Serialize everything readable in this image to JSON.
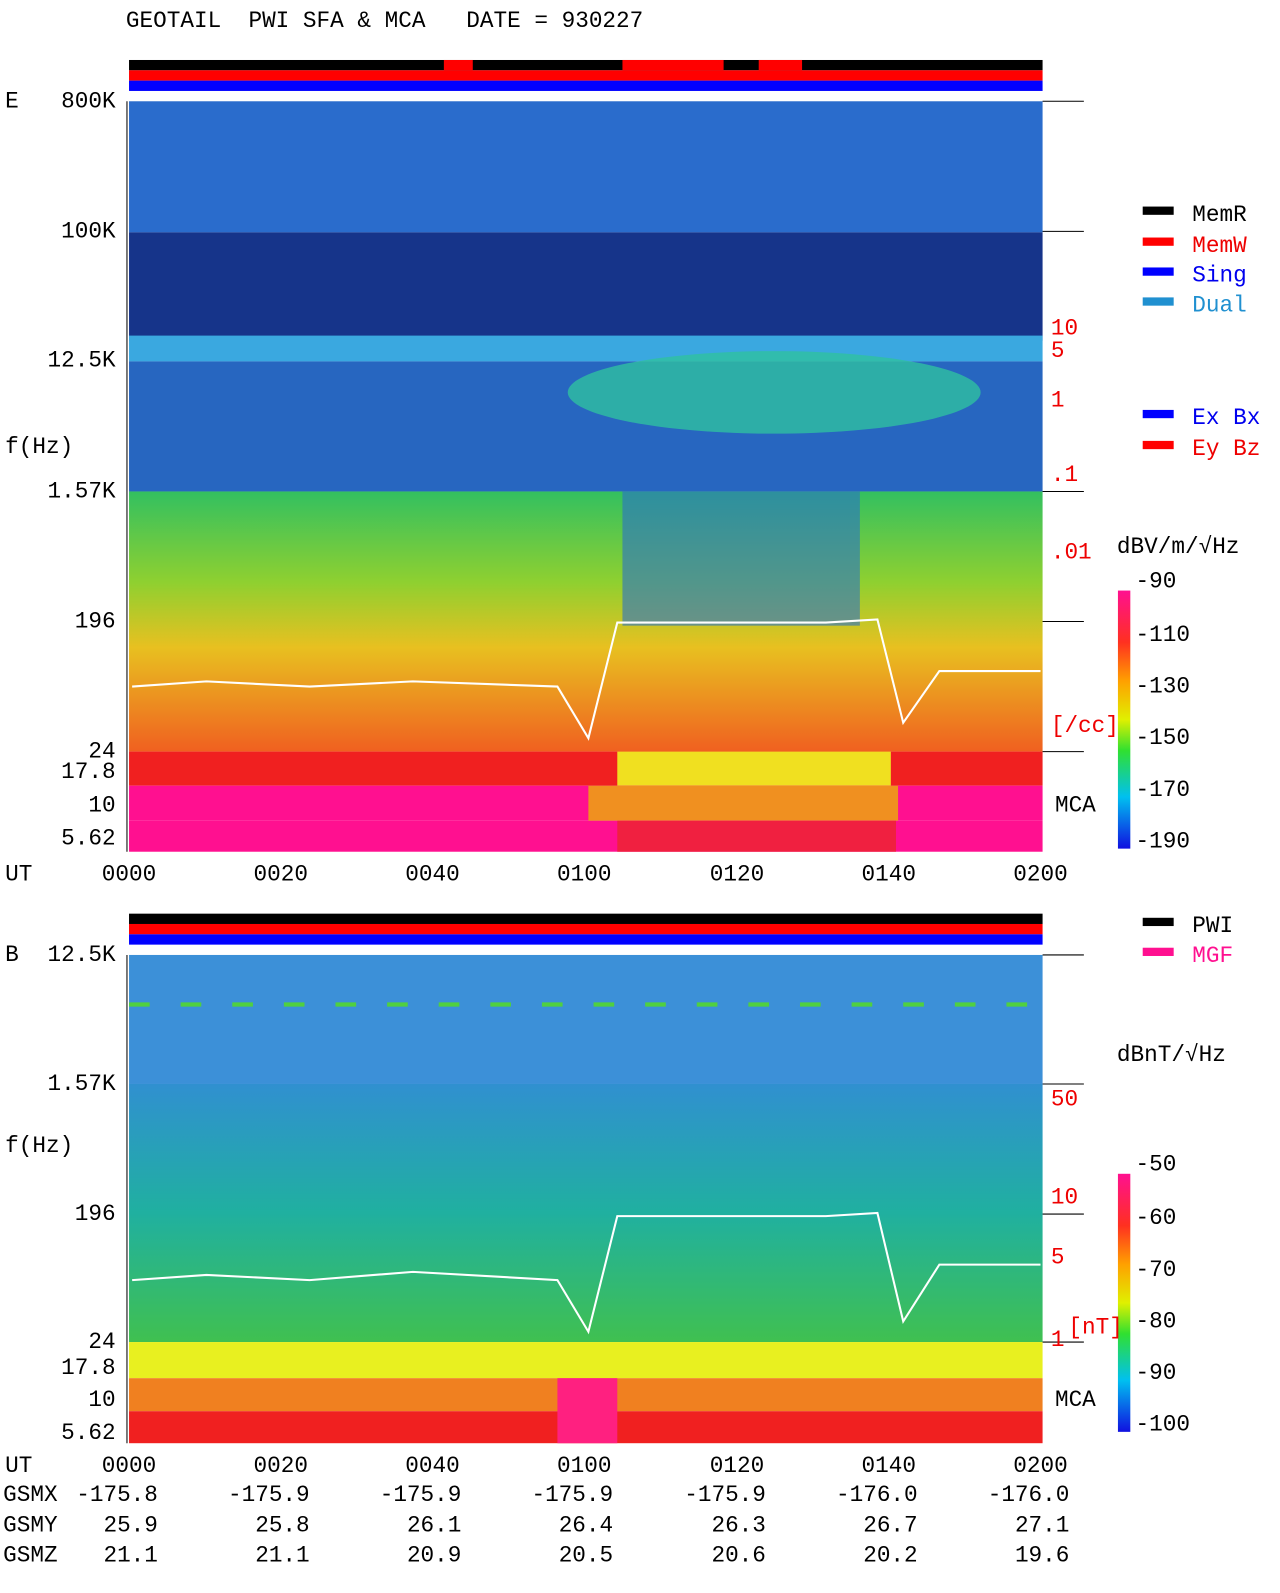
{
  "title": "GEOTAIL  PWI SFA & MCA   DATE = 930227",
  "panel_e": {
    "label": "E",
    "freq_labels": [
      "800K",
      "100K",
      "12.5K",
      "1.57K",
      "196",
      "24",
      "17.8",
      "10",
      "5.62"
    ],
    "axis_title": "f(Hz)",
    "density_labels": [
      "10",
      "5",
      "1",
      ".1",
      ".01",
      "[/cc]"
    ],
    "mca": "MCA",
    "legend_status": [
      "MemR",
      "MemW",
      "Sing",
      "Dual"
    ],
    "legend_comp": [
      "Ex Bx",
      "Ey Bz"
    ],
    "colorbar_title": "dBV/m/√Hz",
    "colorbar_ticks": [
      "-90",
      "-110",
      "-130",
      "-150",
      "-170",
      "-190"
    ],
    "time_title": "UT",
    "time_labels": [
      "0000",
      "0020",
      "0040",
      "0100",
      "0120",
      "0140",
      "0200"
    ]
  },
  "panel_b": {
    "label": "B",
    "freq_labels": [
      "12.5K",
      "1.57K",
      "196",
      "24",
      "17.8",
      "10",
      "5.62"
    ],
    "axis_title": "f(Hz)",
    "field_labels": [
      "50",
      "10",
      "5",
      "1",
      "[nT]"
    ],
    "mca": "MCA",
    "legend": [
      "PWI",
      "MGF"
    ],
    "colorbar_title": "dBnT/√Hz",
    "colorbar_ticks": [
      "-50",
      "-60",
      "-70",
      "-80",
      "-90",
      "-100"
    ],
    "time_title": "UT",
    "time_labels": [
      "0000",
      "0020",
      "0040",
      "0100",
      "0120",
      "0140",
      "0200"
    ]
  },
  "orbit": {
    "rows": [
      {
        "name": "GSMX",
        "values": [
          "-175.8",
          "-175.9",
          "-175.9",
          "-175.9",
          "-175.9",
          "-176.0",
          "-176.0"
        ]
      },
      {
        "name": "GSMY",
        "values": [
          "25.9",
          "25.8",
          "26.1",
          "26.4",
          "26.3",
          "26.7",
          "27.1"
        ]
      },
      {
        "name": "GSMZ",
        "values": [
          "21.1",
          "21.1",
          "20.9",
          "20.5",
          "20.6",
          "20.2",
          "19.6"
        ]
      }
    ]
  }
}
